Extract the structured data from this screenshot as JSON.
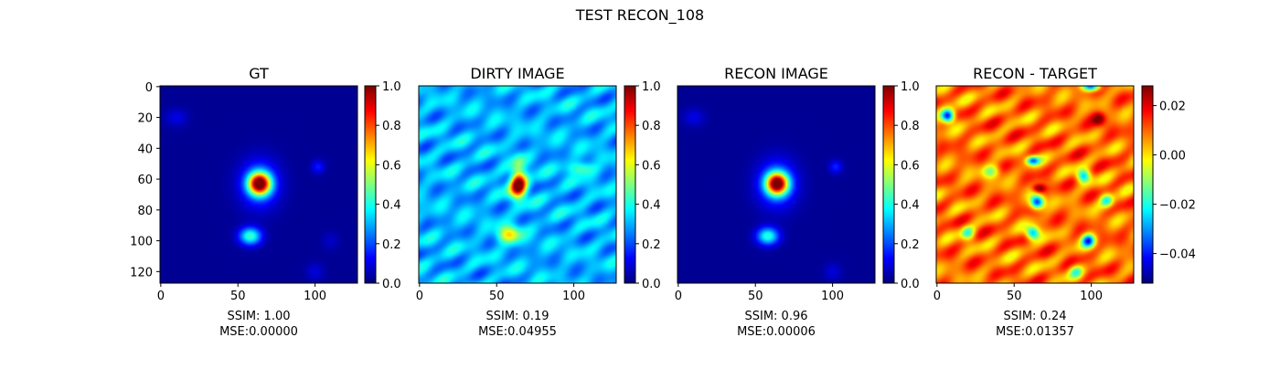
{
  "figure": {
    "suptitle": "TEST RECON_108"
  },
  "colors": {
    "jet": [
      "#00007f",
      "#0000ff",
      "#007fff",
      "#00ffff",
      "#7fff7f",
      "#ffff00",
      "#ff7f00",
      "#ff0000",
      "#7f0000"
    ],
    "axis": "#000000",
    "background": "#ffffff"
  },
  "chart_data": [
    {
      "type": "heatmap",
      "title": "GT",
      "image_size": [
        128,
        128
      ],
      "colormap": "jet",
      "clim": [
        0.0,
        1.0
      ],
      "colorbar_ticks": [
        "0.0",
        "0.2",
        "0.4",
        "0.6",
        "0.8",
        "1.0"
      ],
      "xticks": [
        "0",
        "50",
        "100"
      ],
      "yticks": [
        "0",
        "20",
        "40",
        "60",
        "80",
        "100",
        "120"
      ],
      "metrics": {
        "ssim": "SSIM: 1.00",
        "mse": "MSE:0.00000"
      },
      "features": [
        {
          "x": 64,
          "y": 63,
          "sx": 5,
          "sy": 5,
          "amp": 0.92
        },
        {
          "x": 64,
          "y": 63,
          "sx": 9,
          "sy": 11,
          "amp": 0.22
        },
        {
          "x": 58,
          "y": 97,
          "sx": 5,
          "sy": 4,
          "amp": 0.42
        },
        {
          "x": 102,
          "y": 52,
          "sx": 3,
          "sy": 3,
          "amp": 0.13
        },
        {
          "x": 10,
          "y": 20,
          "sx": 5,
          "sy": 4,
          "amp": 0.08
        },
        {
          "x": 100,
          "y": 120,
          "sx": 4,
          "sy": 4,
          "amp": 0.07
        },
        {
          "x": 110,
          "y": 100,
          "sx": 4,
          "sy": 4,
          "amp": 0.05
        }
      ]
    },
    {
      "type": "heatmap",
      "title": "DIRTY IMAGE",
      "image_size": [
        128,
        128
      ],
      "colormap": "jet",
      "clim": [
        0.0,
        1.0
      ],
      "colorbar_ticks": [
        "0.0",
        "0.2",
        "0.4",
        "0.6",
        "0.8",
        "1.0"
      ],
      "xticks": [
        "0",
        "50",
        "100"
      ],
      "yticks": [],
      "metrics": {
        "ssim": "SSIM: 0.19",
        "mse": "MSE:0.04955"
      },
      "background_level": 0.3,
      "noise_amplitude": 0.1,
      "features": [
        {
          "x": 64,
          "y": 64,
          "sx": 4,
          "sy": 5,
          "amp": 0.65
        },
        {
          "x": 64,
          "y": 58,
          "sx": 3,
          "sy": 10,
          "amp": 0.2
        },
        {
          "x": 58,
          "y": 96,
          "sx": 5,
          "sy": 4,
          "amp": 0.35
        },
        {
          "x": 105,
          "y": 53,
          "sx": 6,
          "sy": 3,
          "amp": 0.2
        }
      ]
    },
    {
      "type": "heatmap",
      "title": "RECON IMAGE",
      "image_size": [
        128,
        128
      ],
      "colormap": "jet",
      "clim": [
        0.0,
        1.0
      ],
      "colorbar_ticks": [
        "0.0",
        "0.2",
        "0.4",
        "0.6",
        "0.8",
        "1.0"
      ],
      "xticks": [
        "0",
        "50",
        "100"
      ],
      "yticks": [],
      "metrics": {
        "ssim": "SSIM: 0.96",
        "mse": "MSE:0.00006"
      },
      "features": [
        {
          "x": 64,
          "y": 63,
          "sx": 5,
          "sy": 5,
          "amp": 0.9
        },
        {
          "x": 64,
          "y": 63,
          "sx": 9,
          "sy": 11,
          "amp": 0.22
        },
        {
          "x": 58,
          "y": 97,
          "sx": 5,
          "sy": 4,
          "amp": 0.4
        },
        {
          "x": 102,
          "y": 52,
          "sx": 3,
          "sy": 3,
          "amp": 0.14
        },
        {
          "x": 10,
          "y": 20,
          "sx": 5,
          "sy": 4,
          "amp": 0.08
        },
        {
          "x": 100,
          "y": 120,
          "sx": 4,
          "sy": 4,
          "amp": 0.07
        }
      ]
    },
    {
      "type": "heatmap",
      "title": "RECON - TARGET",
      "image_size": [
        128,
        128
      ],
      "colormap": "jet",
      "clim": [
        -0.052,
        0.028
      ],
      "colorbar_ticks": [
        "0.02",
        "0.00",
        "−0.02",
        "−0.04"
      ],
      "colorbar_tick_values": [
        0.02,
        0.0,
        -0.02,
        -0.04
      ],
      "xticks": [
        "0",
        "50",
        "100"
      ],
      "yticks": [],
      "metrics": {
        "ssim": "SSIM: 0.24",
        "mse": "MSE:0.01357"
      },
      "background_level": 0.009,
      "noise_amplitude": 0.01,
      "features": [
        {
          "x": 7,
          "y": 19,
          "sx": 3,
          "sy": 3,
          "amp": -0.055
        },
        {
          "x": 105,
          "y": 21,
          "sx": 3,
          "sy": 3,
          "amp": 0.02
        },
        {
          "x": 62,
          "y": 48,
          "sx": 3,
          "sy": 2,
          "amp": -0.04
        },
        {
          "x": 66,
          "y": 66,
          "sx": 3,
          "sy": 2,
          "amp": 0.025
        },
        {
          "x": 65,
          "y": 75,
          "sx": 3,
          "sy": 3,
          "amp": -0.05
        },
        {
          "x": 62,
          "y": 95,
          "sx": 3,
          "sy": 3,
          "amp": -0.04
        },
        {
          "x": 98,
          "y": 100,
          "sx": 3,
          "sy": 3,
          "amp": -0.045
        },
        {
          "x": 110,
          "y": 74,
          "sx": 3,
          "sy": 3,
          "amp": -0.03
        },
        {
          "x": 95,
          "y": 58,
          "sx": 3,
          "sy": 3,
          "amp": -0.035
        },
        {
          "x": 100,
          "y": 0,
          "sx": 4,
          "sy": 2,
          "amp": -0.045
        },
        {
          "x": 90,
          "y": 120,
          "sx": 3,
          "sy": 3,
          "amp": -0.02
        },
        {
          "x": 35,
          "y": 55,
          "sx": 4,
          "sy": 3,
          "amp": -0.02
        },
        {
          "x": 20,
          "y": 95,
          "sx": 3,
          "sy": 3,
          "amp": -0.025
        }
      ]
    }
  ]
}
